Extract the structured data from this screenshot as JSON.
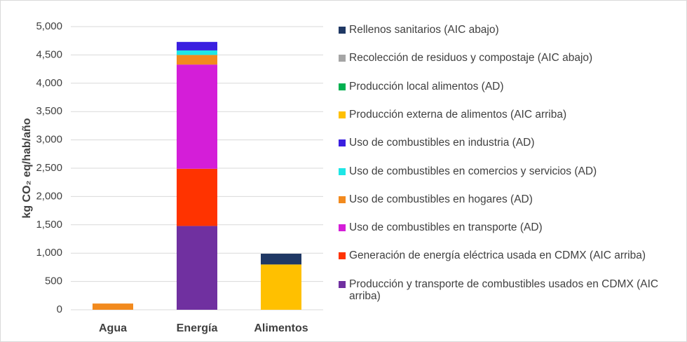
{
  "chart_data": {
    "type": "stacked_bar",
    "y_label": "kg CO₂ eq/hab/año",
    "categories": [
      "Agua",
      "Energía",
      "Alimentos"
    ],
    "ylim": [
      0,
      5000
    ],
    "yticks": [
      0,
      {
        "value": 500,
        "label": "500"
      },
      {
        "value": 1000,
        "label": "1,000"
      },
      {
        "value": 1500,
        "label": "1,500"
      },
      {
        "value": 2000,
        "label": "2,000"
      },
      {
        "value": 2500,
        "label": "2,500"
      },
      {
        "value": 3000,
        "label": "3,000"
      },
      {
        "value": 3500,
        "label": "3,500"
      },
      {
        "value": 4000,
        "label": "4,000"
      },
      {
        "value": 4500,
        "label": "4,500"
      },
      {
        "value": 5000,
        "label": "5,000"
      }
    ],
    "grid": true,
    "series": [
      {
        "name": "Rellenos sanitarios (AIC abajo)",
        "color": "#1f3864",
        "values": [
          0,
          0,
          190
        ]
      },
      {
        "name": "Recolección de residuos y compostaje (AIC abajo)",
        "color": "#a5a5a5",
        "values": [
          0,
          0,
          0
        ]
      },
      {
        "name": "Producción  local alimentos (AD)",
        "color": "#00b050",
        "values": [
          0,
          0,
          0
        ]
      },
      {
        "name": "Producción externa de alimentos (AIC arriba)",
        "color": "#ffc000",
        "values": [
          0,
          0,
          800
        ]
      },
      {
        "name": "Uso de combustibles en  industria (AD)",
        "color": "#3a1fe0",
        "values": [
          0,
          150,
          0
        ]
      },
      {
        "name": "Uso de combustibles en comercios y servicios (AD)",
        "color": "#1ee6e6",
        "values": [
          0,
          80,
          0
        ]
      },
      {
        "name": "Uso de combustibles en  hogares (AD)",
        "color": "#f28a1e",
        "values": [
          110,
          170,
          0
        ]
      },
      {
        "name": "Uso de combustibles en transporte (AD)",
        "color": "#d41ed8",
        "values": [
          0,
          1840,
          0
        ]
      },
      {
        "name": "Generación de energía eléctrica usada en CDMX (AIC arriba)",
        "color": "#ff3300",
        "values": [
          0,
          1010,
          0
        ]
      },
      {
        "name": "Producción y transporte de combustibles usados en CDMX (AIC arriba)",
        "color": "#7030a0",
        "values": [
          0,
          1480,
          0
        ]
      }
    ]
  }
}
